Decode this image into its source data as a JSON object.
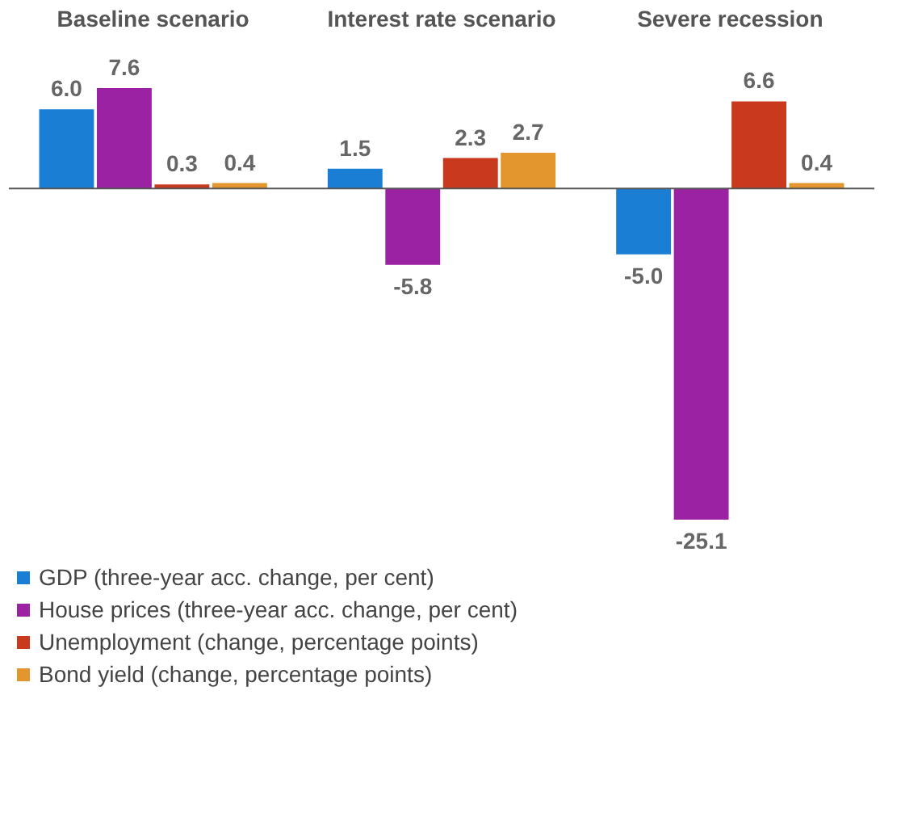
{
  "chart_data": {
    "type": "bar",
    "categories": [
      "Baseline scenario",
      "Interest rate scenario",
      "Severe recession"
    ],
    "series": [
      {
        "name": "GDP (three-year acc. change, per cent)",
        "color": "#1a7fd4",
        "values": [
          6.0,
          1.5,
          -5.0
        ],
        "value_labels": [
          "6.0",
          "1.5",
          "-5.0"
        ]
      },
      {
        "name": "House prices (three-year acc. change, per cent)",
        "color": "#9a22a3",
        "values": [
          7.6,
          -5.8,
          -25.1
        ],
        "value_labels": [
          "7.6",
          "-5.8",
          "-25.1"
        ]
      },
      {
        "name": "Unemployment (change, percentage points)",
        "color": "#c8391d",
        "values": [
          0.3,
          2.3,
          6.6
        ],
        "value_labels": [
          "0.3",
          "2.3",
          "6.6"
        ]
      },
      {
        "name": "Bond yield (change, percentage points)",
        "color": "#e3962d",
        "values": [
          0.4,
          2.7,
          0.4
        ],
        "value_labels": [
          "0.4",
          "2.7",
          "0.4"
        ]
      }
    ],
    "legend": "bottom"
  }
}
